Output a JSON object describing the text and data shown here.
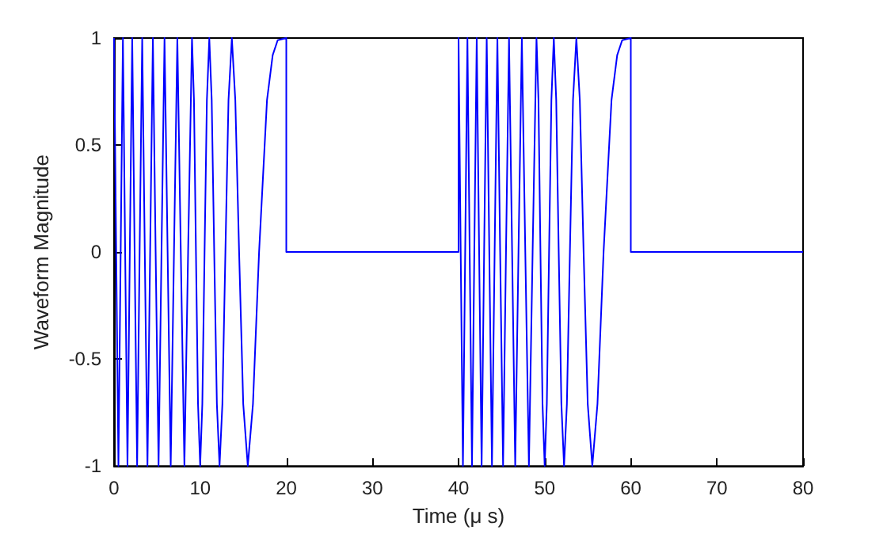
{
  "chart_data": {
    "type": "line",
    "xlabel": "Time (μ s)",
    "ylabel": "Waveform Magnitude",
    "xlim": [
      0,
      80
    ],
    "xticks": [
      0,
      10,
      20,
      30,
      40,
      50,
      60,
      70,
      80
    ],
    "ylim": [
      -1,
      1
    ],
    "yticks": [
      -1,
      -0.5,
      0,
      0.5,
      1
    ],
    "marker": "none",
    "series": [
      {
        "color": "#0000ff",
        "x": [
          0,
          0.25,
          0.51,
          0.77,
          1.03,
          1.29,
          1.56,
          1.83,
          2.11,
          2.39,
          2.68,
          2.97,
          3.27,
          3.57,
          3.88,
          4.19,
          4.51,
          4.83,
          5.17,
          5.51,
          5.86,
          6.22,
          6.58,
          6.96,
          7.35,
          7.75,
          8.17,
          8.6,
          9.05,
          9.28,
          9.51,
          9.75,
          10,
          10.25,
          10.51,
          10.78,
          11.06,
          11.34,
          11.63,
          11.94,
          12.25,
          12.58,
          12.93,
          13.29,
          13.68,
          14.08,
          14.52,
          15,
          15.53,
          16.13,
          16.84,
          17.76,
          18.42,
          19,
          20,
          20,
          40,
          40,
          40.25,
          40.51,
          40.77,
          41.03,
          41.29,
          41.56,
          41.83,
          42.11,
          42.39,
          42.68,
          42.97,
          43.27,
          43.57,
          43.88,
          44.19,
          44.51,
          44.83,
          45.17,
          45.51,
          45.86,
          46.22,
          46.58,
          46.96,
          47.35,
          47.75,
          48.17,
          48.6,
          49.05,
          49.28,
          49.51,
          49.75,
          50,
          50.25,
          50.51,
          50.78,
          51.06,
          51.34,
          51.63,
          51.94,
          52.25,
          52.58,
          52.93,
          53.29,
          53.68,
          54.08,
          54.52,
          55,
          55.53,
          56.13,
          56.84,
          57.76,
          58.42,
          59,
          60,
          60,
          80
        ],
        "values": [
          1,
          0,
          -1,
          0,
          1,
          0,
          -1,
          0,
          1,
          0,
          -1,
          0,
          1,
          0,
          -1,
          0,
          1,
          0,
          -1,
          0,
          1,
          0,
          -1,
          0,
          1,
          0,
          -1,
          0,
          1,
          0.71,
          0,
          -0.71,
          -1,
          -0.71,
          0,
          0.71,
          1,
          0.71,
          0,
          -0.71,
          -1,
          -0.71,
          0,
          0.71,
          1,
          0.71,
          0,
          -0.71,
          -1,
          -0.71,
          0,
          0.71,
          0.92,
          0.99,
          1,
          0,
          0,
          1,
          0,
          -1,
          0,
          1,
          0,
          -1,
          0,
          1,
          0,
          -1,
          0,
          1,
          0,
          -1,
          0,
          1,
          0,
          -1,
          0,
          1,
          0,
          -1,
          0,
          1,
          0,
          -1,
          0,
          1,
          0.71,
          0,
          -0.71,
          -1,
          -0.71,
          0,
          0.71,
          1,
          0.71,
          0,
          -0.71,
          -1,
          -0.71,
          0,
          0.71,
          1,
          0.71,
          0,
          -0.71,
          -1,
          -0.71,
          0,
          0.71,
          0.92,
          0.99,
          1,
          0,
          0
        ]
      }
    ]
  }
}
